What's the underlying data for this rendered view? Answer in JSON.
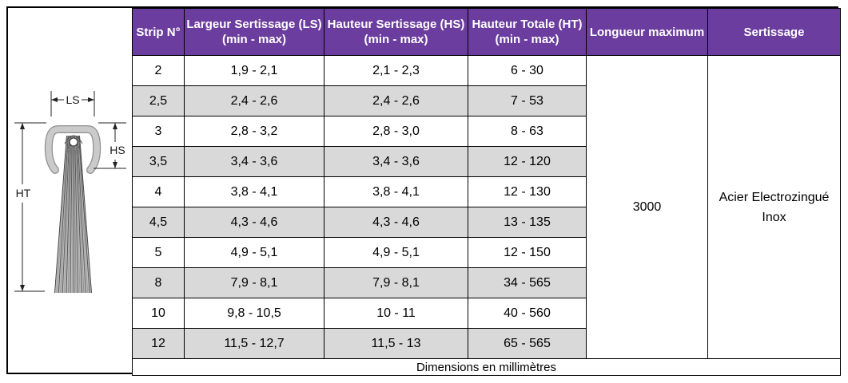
{
  "diagram": {
    "dim_ls": "LS",
    "dim_hs": "HS",
    "dim_ht": "HT"
  },
  "table": {
    "headers": [
      {
        "lines": [
          "Strip N°"
        ]
      },
      {
        "lines": [
          "Largeur Sertissage (LS)",
          "(min - max)"
        ]
      },
      {
        "lines": [
          "Hauteur Sertissage (HS)",
          "(min - max)"
        ]
      },
      {
        "lines": [
          "Hauteur Totale (HT)",
          "(min - max)"
        ]
      },
      {
        "lines": [
          "Longueur maximum"
        ]
      },
      {
        "lines": [
          "Sertissage"
        ]
      }
    ],
    "rows": [
      {
        "strip": "2",
        "ls": "1,9 - 2,1",
        "hs": "2,1 - 2,3",
        "ht": "6 - 30"
      },
      {
        "strip": "2,5",
        "ls": "2,4 - 2,6",
        "hs": "2,4 - 2,6",
        "ht": "7 - 53"
      },
      {
        "strip": "3",
        "ls": "2,8 - 3,2",
        "hs": "2,8 - 3,0",
        "ht": "8 - 63"
      },
      {
        "strip": "3,5",
        "ls": "3,4 - 3,6",
        "hs": "3,4 - 3,6",
        "ht": "12 - 120"
      },
      {
        "strip": "4",
        "ls": "3,8 - 4,1",
        "hs": "3,8 - 4,1",
        "ht": "12 - 130"
      },
      {
        "strip": "4,5",
        "ls": "4,3 - 4,6",
        "hs": "4,3 - 4,6",
        "ht": "13 - 135"
      },
      {
        "strip": "5",
        "ls": "4,9 - 5,1",
        "hs": "4,9 - 5,1",
        "ht": "12 - 150"
      },
      {
        "strip": "8",
        "ls": "7,9 - 8,1",
        "hs": "7,9 - 8,1",
        "ht": "34 - 565"
      },
      {
        "strip": "10",
        "ls": "9,8 - 10,5",
        "hs": "10 - 11",
        "ht": "40 - 560"
      },
      {
        "strip": "12",
        "ls": "11,5 - 12,7",
        "hs": "11,5 - 13",
        "ht": "65 - 565"
      }
    ],
    "longueur_maximum": "3000",
    "sertissage": [
      "Acier Electrozingué",
      "Inox"
    ],
    "footer": "Dimensions en millimètres"
  },
  "colors": {
    "header_bg": "#6B3D9E",
    "header_text": "#FFFFFF",
    "row_alt_bg": "#D9D9D9",
    "border": "#000000"
  }
}
